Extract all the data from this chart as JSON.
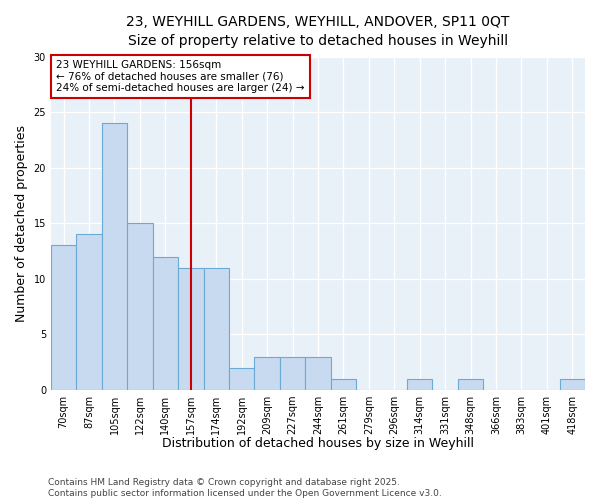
{
  "title_line1": "23, WEYHILL GARDENS, WEYHILL, ANDOVER, SP11 0QT",
  "title_line2": "Size of property relative to detached houses in Weyhill",
  "xlabel": "Distribution of detached houses by size in Weyhill",
  "ylabel": "Number of detached properties",
  "categories": [
    "70sqm",
    "87sqm",
    "105sqm",
    "122sqm",
    "140sqm",
    "157sqm",
    "174sqm",
    "192sqm",
    "209sqm",
    "227sqm",
    "244sqm",
    "261sqm",
    "279sqm",
    "296sqm",
    "314sqm",
    "331sqm",
    "348sqm",
    "366sqm",
    "383sqm",
    "401sqm",
    "418sqm"
  ],
  "values": [
    13,
    14,
    24,
    15,
    12,
    11,
    11,
    2,
    3,
    3,
    3,
    1,
    0,
    0,
    1,
    0,
    1,
    0,
    0,
    0,
    1
  ],
  "bar_color": "#c8daf0",
  "bar_edge_color": "#6aaad4",
  "annotation_box_text": "23 WEYHILL GARDENS: 156sqm\n← 76% of detached houses are smaller (76)\n24% of semi-detached houses are larger (24) →",
  "annotation_box_color": "#ffffff",
  "annotation_box_edge_color": "#cc0000",
  "vline_x_index": 5,
  "vline_color": "#cc0000",
  "ylim": [
    0,
    30
  ],
  "yticks": [
    0,
    5,
    10,
    15,
    20,
    25,
    30
  ],
  "footer": "Contains HM Land Registry data © Crown copyright and database right 2025.\nContains public sector information licensed under the Open Government Licence v3.0.",
  "background_color": "#ffffff",
  "plot_background_color": "#e8f0f8",
  "grid_color": "#ffffff",
  "title_fontsize": 10,
  "subtitle_fontsize": 9,
  "axis_label_fontsize": 9,
  "tick_fontsize": 7,
  "annotation_fontsize": 7.5,
  "footer_fontsize": 6.5
}
